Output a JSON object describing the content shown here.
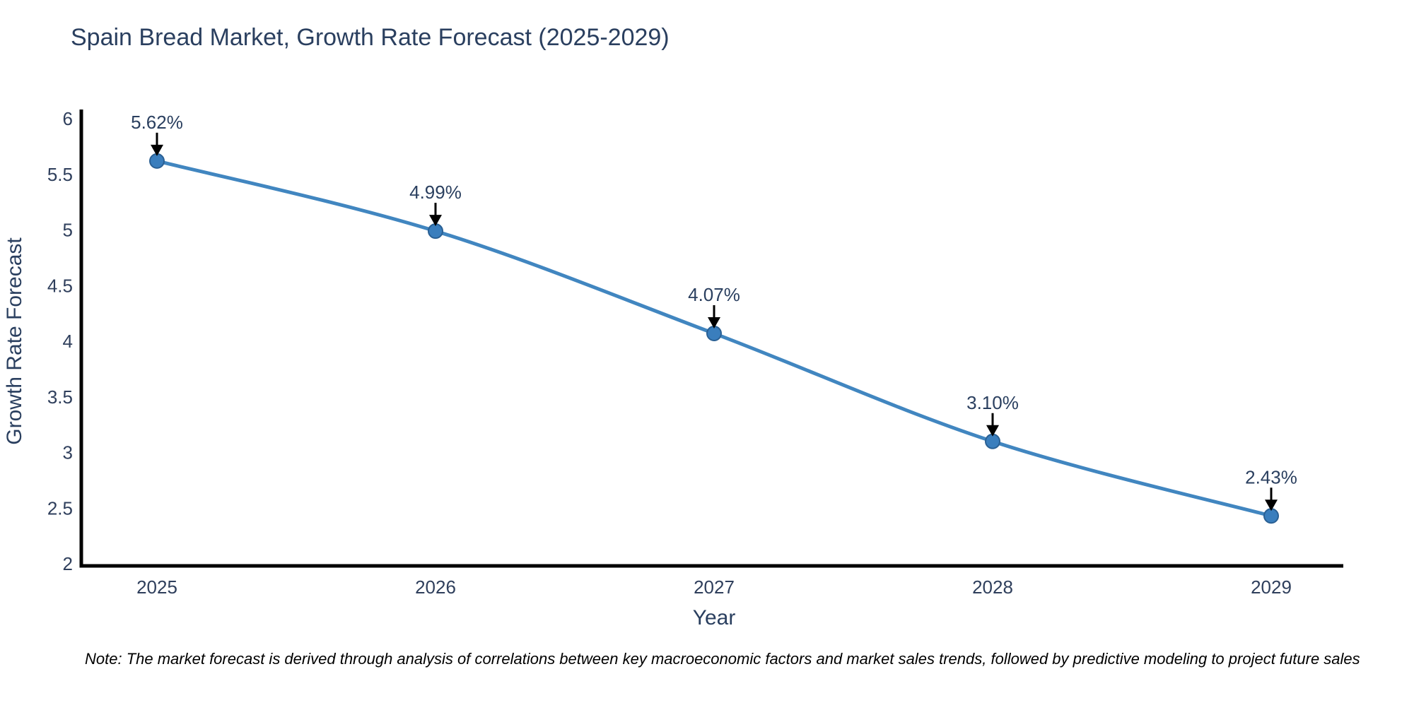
{
  "title": "Spain Bread Market, Growth Rate Forecast (2025-2029)",
  "note": "Note: The market forecast is derived through analysis of correlations between key macroeconomic factors and market sales trends, followed by predictive modeling to project future sales",
  "chart_data": {
    "type": "line",
    "title": "Spain Bread Market, Growth Rate Forecast (2025-2029)",
    "xlabel": "Year",
    "ylabel": "Growth Rate Forecast",
    "x": [
      2025,
      2026,
      2027,
      2028,
      2029
    ],
    "series": [
      {
        "name": "Growth Rate Forecast",
        "values": [
          5.62,
          4.99,
          4.07,
          3.1,
          2.43
        ]
      }
    ],
    "point_labels": [
      "5.62%",
      "4.99%",
      "4.07%",
      "3.10%",
      "2.43%"
    ],
    "ylim": [
      2,
      6
    ],
    "yticks": [
      2,
      2.5,
      3,
      3.5,
      4,
      4.5,
      5,
      5.5,
      6
    ],
    "xticks": [
      2025,
      2026,
      2027,
      2028,
      2029
    ],
    "grid": false,
    "legend_position": "none",
    "smooth": true,
    "annotations_have_arrows": true,
    "colors": {
      "line": "#4186c0",
      "marker_fill": "#3a7ebd",
      "marker_edge": "#2a6094",
      "axis_line": "#000000",
      "text": "#2a3f5f",
      "annotation_arrow": "#000000",
      "note_text": "#000000",
      "background": "#ffffff"
    }
  }
}
